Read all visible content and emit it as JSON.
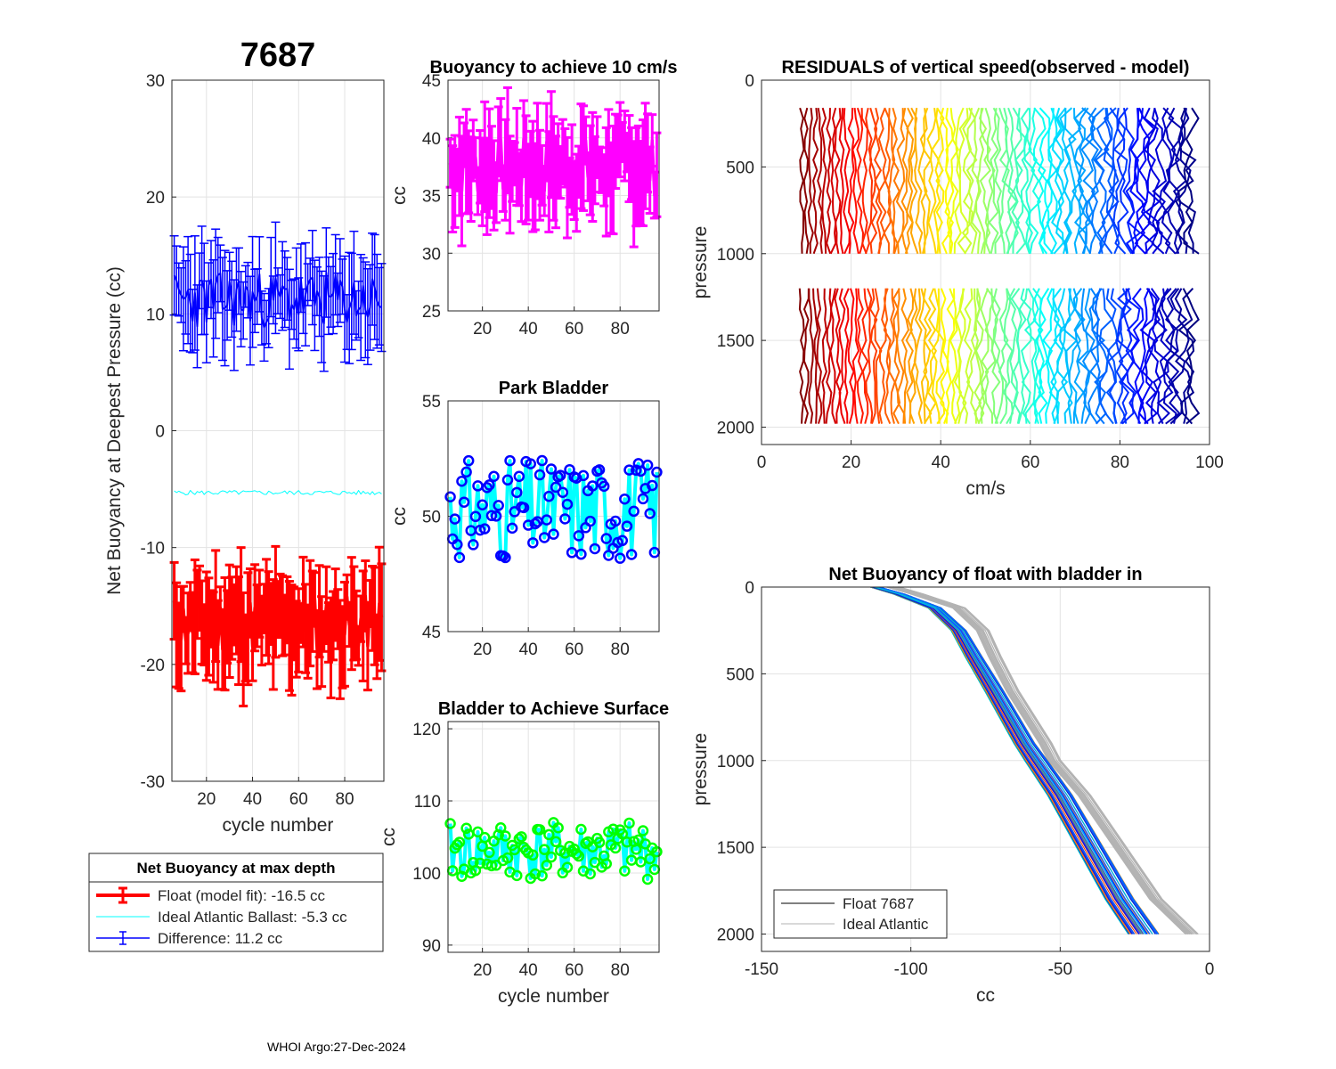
{
  "figure_title": "7687",
  "footer": "WHOI Argo:27-Dec-2024",
  "colors": {
    "red": "#ff0000",
    "blue": "#0000ff",
    "cyan": "#00ffff",
    "magenta": "#ff00ff",
    "green": "#00ff00",
    "grey": "#b3b3b3",
    "black": "#000000"
  },
  "legend1": {
    "title": "Net Buoyancy at max depth",
    "entries": [
      "Float (model fit): -16.5 cc",
      "Ideal Atlantic Ballast:  -5.3 cc",
      "Difference:  11.2 cc"
    ]
  },
  "legend2": {
    "entries": [
      "Float 7687",
      "Ideal Atlantic"
    ]
  },
  "chart_data": [
    {
      "id": "net_buoyancy_deepest",
      "type": "line",
      "title": "",
      "xlabel": "cycle number",
      "ylabel": "Net Buoyancy at Deepest Pressure (cc)",
      "xlim": [
        5,
        97
      ],
      "ylim": [
        -30,
        30
      ],
      "xticks": [
        20,
        40,
        60,
        80
      ],
      "yticks": [
        -30,
        -20,
        -10,
        0,
        10,
        20,
        30
      ],
      "x_range": [
        6,
        96
      ],
      "series": [
        {
          "name": "Float (model fit)",
          "color": "red",
          "errorbars": true,
          "mean": -16.5,
          "amplitude": 2.4,
          "err": 3.3,
          "seed": 11
        },
        {
          "name": "Ideal Atlantic Ballast",
          "color": "cyan",
          "errorbars": false,
          "mean": -5.3,
          "amplitude": 0.2,
          "seed": 5
        },
        {
          "name": "Difference",
          "color": "blue",
          "errorbars": true,
          "mean": 11.2,
          "amplitude": 2.4,
          "err": 3.3,
          "seed": 23
        }
      ]
    },
    {
      "id": "buoyancy_10cms",
      "type": "line",
      "title": "Buoyancy to achieve 10 cm/s",
      "xlabel": "",
      "ylabel": "cc",
      "xlim": [
        5,
        97
      ],
      "ylim": [
        25,
        45
      ],
      "xticks": [
        20,
        40,
        60,
        80
      ],
      "yticks": [
        25,
        30,
        35,
        40,
        45
      ],
      "x_range": [
        6,
        96
      ],
      "series": [
        {
          "name": "buoyancy",
          "color": "magenta",
          "errorbars": true,
          "mean": 37.5,
          "amplitude": 2.5,
          "err": 3.2,
          "seed": 7
        }
      ]
    },
    {
      "id": "park_bladder",
      "type": "line",
      "title": "Park Bladder",
      "xlabel": "",
      "ylabel": "cc",
      "xlim": [
        5,
        97
      ],
      "ylim": [
        45,
        55
      ],
      "xticks": [
        20,
        40,
        60,
        80
      ],
      "yticks": [
        45,
        50,
        55
      ],
      "x_range": [
        6,
        96
      ],
      "series": [
        {
          "name": "park",
          "color": "cyan",
          "marker_color": "blue",
          "mean": 50.3,
          "amplitude": 2.2,
          "seed": 31
        }
      ]
    },
    {
      "id": "bladder_surface",
      "type": "line",
      "title": "Bladder to Achieve Surface",
      "xlabel": "cycle number",
      "ylabel": "cc",
      "xlim": [
        5,
        97
      ],
      "ylim": [
        89,
        121
      ],
      "xticks": [
        20,
        40,
        60,
        80
      ],
      "yticks": [
        90,
        100,
        110,
        120
      ],
      "x_range": [
        6,
        96
      ],
      "series": [
        {
          "name": "surface",
          "color": "cyan",
          "marker_color": "green",
          "mean": 103,
          "amplitude": 4,
          "seed": 41
        }
      ]
    },
    {
      "id": "residuals",
      "type": "line",
      "title": "RESIDUALS of vertical speed(observed - model)",
      "xlabel": "cm/s",
      "ylabel": "pressure",
      "xlim": [
        0,
        100
      ],
      "ylim": [
        0,
        2100
      ],
      "y_reversed": true,
      "xticks": [
        0,
        20,
        40,
        60,
        80,
        100
      ],
      "yticks": [
        0,
        500,
        1000,
        1500,
        2000
      ],
      "profiles_offset_start": 9,
      "profiles_offset_end": 96,
      "profiles_count": 88,
      "upper_block": [
        160,
        1010
      ],
      "lower_block": [
        1200,
        2000
      ]
    },
    {
      "id": "net_buoyancy_bladder_in",
      "type": "line",
      "title": "Net Buoyancy of float with bladder in",
      "xlabel": "cc",
      "ylabel": "pressure",
      "xlim": [
        -150,
        0
      ],
      "ylim": [
        0,
        2100
      ],
      "y_reversed": true,
      "xticks": [
        -150,
        -100,
        -50,
        0
      ],
      "yticks": [
        0,
        500,
        1000,
        1500,
        2000
      ],
      "float_profile": {
        "pressure": [
          0,
          40,
          120,
          250,
          400,
          600,
          900,
          1000,
          1200,
          1500,
          1800,
          2000
        ],
        "cc": [
          -112,
          -104,
          -92,
          -84,
          -79,
          -72,
          -62,
          -58,
          -50,
          -40,
          -30,
          -22
        ]
      },
      "ideal_profile": {
        "pressure": [
          0,
          40,
          120,
          250,
          400,
          600,
          900,
          1000,
          1200,
          1500,
          1800,
          2000
        ],
        "cc": [
          -106,
          -98,
          -84,
          -76,
          -72,
          -66,
          -55,
          -52,
          -42,
          -30,
          -18,
          -8
        ]
      }
    }
  ]
}
